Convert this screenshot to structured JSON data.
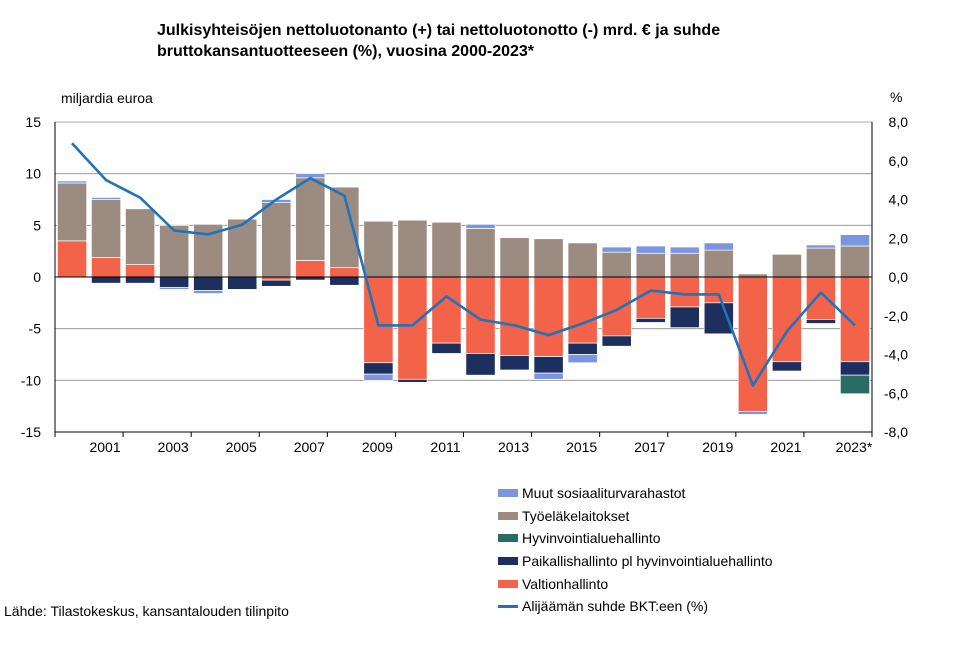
{
  "title": "Julkisyhteisöjen nettoluotonanto (+) tai nettoluotonotto (-) mrd. € ja suhde bruttokansantuotteeseen (%), vuosina 2000-2023*",
  "source": "Lähde: Tilastokeskus, kansantalouden tilinpito",
  "colors": {
    "muut": "#7b96e0",
    "tyoelake": "#9b8b81",
    "hyvinvointi": "#2a6b63",
    "paikallis": "#1c2f5e",
    "valtio": "#f2634a",
    "line": "#1f73bb"
  },
  "chart_data": {
    "type": "bar",
    "subtype": "stacked bar with line on secondary axis",
    "title": "Julkisyhteisöjen nettoluotonanto (+) tai nettoluotonotto (-) mrd. € ja suhde bruttokansantuotteeseen (%), vuosina 2000-2023*",
    "ylabel": "miljardia euroa",
    "y2label": "%",
    "ylim": [
      -15,
      15
    ],
    "y2lim": [
      -8,
      8
    ],
    "yticks": [
      "15",
      "10",
      "5",
      "0",
      "-5",
      "-10",
      "-15"
    ],
    "y2ticks": [
      "8,0",
      "6,0",
      "4,0",
      "2,0",
      "0,0",
      "-2,0",
      "-4,0",
      "-6,0",
      "-8,0"
    ],
    "grid": "horizontal",
    "legend_position": "bottom-right",
    "categories": [
      "2000",
      "2001",
      "2002",
      "2003",
      "2004",
      "2005",
      "2006",
      "2007",
      "2008",
      "2009",
      "2010",
      "2011",
      "2012",
      "2013",
      "2014",
      "2015",
      "2016",
      "2017",
      "2018",
      "2019",
      "2020",
      "2021",
      "2022",
      "2023*"
    ],
    "xtick_labels": [
      "",
      "2001",
      "",
      "2003",
      "",
      "2005",
      "",
      "2007",
      "",
      "2009",
      "",
      "2011",
      "",
      "2013",
      "",
      "2015",
      "",
      "2017",
      "",
      "2019",
      "",
      "2021",
      "",
      "2023*"
    ],
    "series": [
      {
        "name": "Valtionhallinto",
        "key": "valtio",
        "values": [
          3.5,
          1.9,
          1.2,
          0.0,
          0.0,
          0.0,
          -0.3,
          1.6,
          0.9,
          -8.3,
          -9.9,
          -6.4,
          -7.4,
          -7.6,
          -7.7,
          -6.4,
          -5.7,
          -4.0,
          -2.9,
          -2.5,
          -13.0,
          -8.2,
          -4.1,
          -8.2
        ]
      },
      {
        "name": "Paikallishallinto pl hyvinvointialuehallinto",
        "key": "paikallis",
        "values": [
          0.0,
          -0.6,
          -0.6,
          -1.0,
          -1.3,
          -1.2,
          -0.6,
          -0.3,
          -0.8,
          -1.1,
          -0.3,
          -1.0,
          -2.1,
          -1.4,
          -1.6,
          -1.1,
          -1.0,
          -0.4,
          -2.0,
          -3.0,
          0.0,
          -0.9,
          -0.4,
          -1.3
        ]
      },
      {
        "name": "Hyvinvointialuehallinto",
        "key": "hyvinvointi",
        "values": [
          0,
          0,
          0,
          0,
          0,
          0,
          0,
          0,
          0,
          0,
          0,
          0,
          0,
          0,
          0,
          0,
          0,
          0,
          0,
          0,
          0,
          0,
          0,
          -1.8
        ]
      },
      {
        "name": "Työeläkelaitokset",
        "key": "tyoelake",
        "values": [
          5.6,
          5.6,
          5.4,
          5.0,
          5.1,
          5.6,
          7.2,
          8.0,
          7.8,
          5.4,
          5.5,
          5.3,
          4.7,
          3.8,
          3.7,
          3.3,
          2.4,
          2.3,
          2.3,
          2.6,
          0.3,
          2.2,
          2.8,
          3.0
        ]
      },
      {
        "name": "Muut sosiaaliturvarahastot",
        "key": "muut",
        "values": [
          0.2,
          0.2,
          0.0,
          -0.2,
          -0.3,
          0.0,
          0.3,
          0.4,
          0.0,
          -0.6,
          0.0,
          0.0,
          0.4,
          0.0,
          -0.6,
          -0.8,
          0.5,
          0.7,
          0.6,
          0.7,
          -0.3,
          0.0,
          0.3,
          1.1
        ]
      }
    ],
    "line": {
      "name": "Alijäämän suhde BKT:een (%)",
      "axis": "right",
      "values": [
        6.9,
        5.0,
        4.1,
        2.4,
        2.2,
        2.7,
        4.0,
        5.1,
        4.2,
        -2.5,
        -2.5,
        -1.0,
        -2.2,
        -2.5,
        -3.0,
        -2.4,
        -1.7,
        -0.7,
        -0.9,
        -0.9,
        -5.6,
        -2.8,
        -0.8,
        -2.5
      ]
    }
  },
  "legend": [
    {
      "key": "muut",
      "label": "Muut sosiaaliturvarahastot",
      "kind": "box"
    },
    {
      "key": "tyoelake",
      "label": "Työeläkelaitokset",
      "kind": "box"
    },
    {
      "key": "hyvinvointi",
      "label": "Hyvinvointialuehallinto",
      "kind": "box"
    },
    {
      "key": "paikallis",
      "label": "Paikallishallinto pl hyvinvointialuehallinto",
      "kind": "box"
    },
    {
      "key": "valtio",
      "label": "Valtionhallinto",
      "kind": "box"
    },
    {
      "key": "line",
      "label": "Alijäämän suhde BKT:een (%)",
      "kind": "line"
    }
  ]
}
